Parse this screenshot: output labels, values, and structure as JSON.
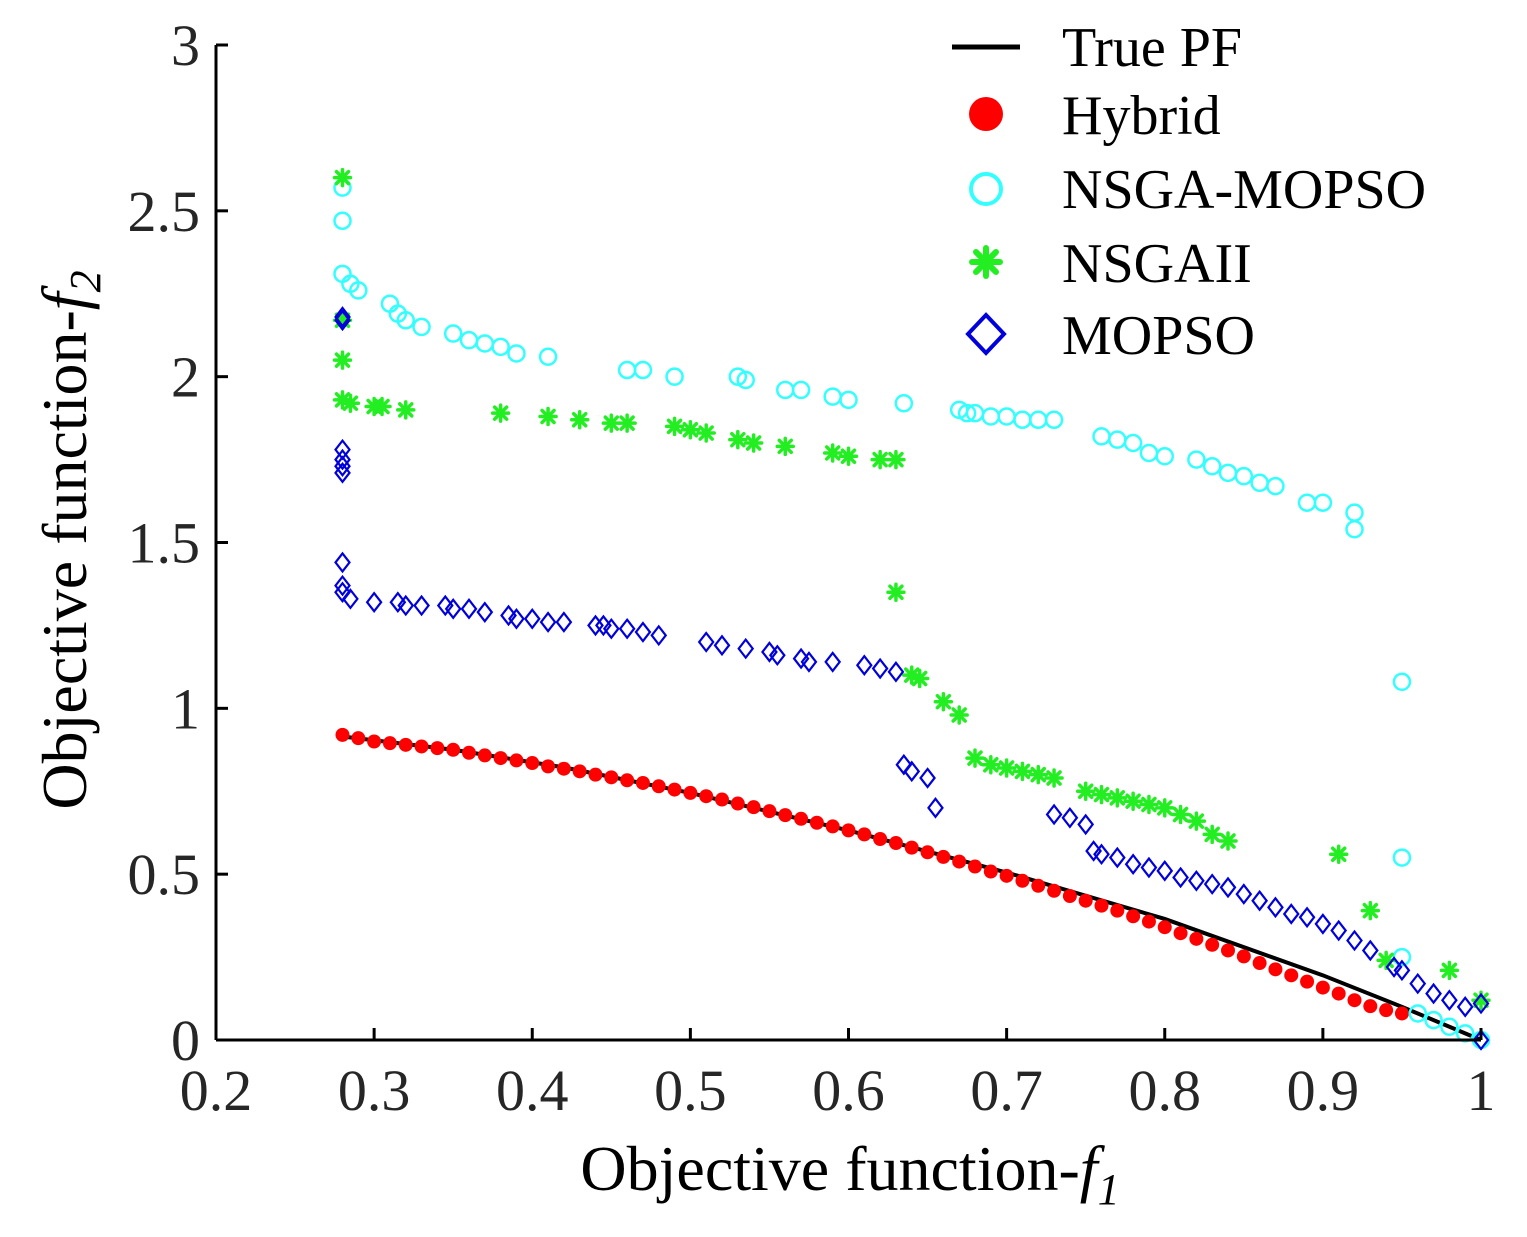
{
  "chart_data": {
    "type": "scatter",
    "title": "",
    "xlabel": "Objective function-",
    "xlabel_var": "f",
    "xlabel_sub": "1",
    "ylabel": "Objective function-",
    "ylabel_var": "f",
    "ylabel_sub": "2",
    "xlim": [
      0.2,
      1.0
    ],
    "ylim": [
      0,
      3
    ],
    "xticks": [
      0.2,
      0.3,
      0.4,
      0.5,
      0.6,
      0.7,
      0.8,
      0.9,
      1.0
    ],
    "xtick_labels": [
      "0.2",
      "0.3",
      "0.4",
      "0.5",
      "0.6",
      "0.7",
      "0.8",
      "0.9",
      "1"
    ],
    "yticks": [
      0,
      0.5,
      1.0,
      1.5,
      2.0,
      2.5,
      3.0
    ],
    "ytick_labels": [
      "0",
      "0.5",
      "1",
      "1.5",
      "2",
      "2.5",
      "3"
    ],
    "grid": false,
    "legend_position": "top-right",
    "series": [
      {
        "name": "True PF",
        "marker": "line",
        "color": "#000000",
        "x": [
          0.28,
          0.35,
          0.42,
          0.5,
          0.6,
          0.7,
          0.8,
          0.9,
          0.95,
          1.0
        ],
        "y": [
          0.915,
          0.875,
          0.822,
          0.745,
          0.632,
          0.505,
          0.365,
          0.195,
          0.1,
          0.0
        ]
      },
      {
        "name": "Hybrid",
        "marker": "filled-circle",
        "color": "#ff0000",
        "x": [
          0.28,
          0.29,
          0.3,
          0.31,
          0.32,
          0.33,
          0.34,
          0.35,
          0.36,
          0.37,
          0.38,
          0.39,
          0.4,
          0.41,
          0.42,
          0.43,
          0.44,
          0.45,
          0.46,
          0.47,
          0.48,
          0.49,
          0.5,
          0.51,
          0.52,
          0.53,
          0.54,
          0.55,
          0.56,
          0.57,
          0.58,
          0.59,
          0.6,
          0.61,
          0.62,
          0.63,
          0.64,
          0.65,
          0.66,
          0.67,
          0.68,
          0.69,
          0.7,
          0.71,
          0.72,
          0.73,
          0.74,
          0.75,
          0.76,
          0.77,
          0.78,
          0.79,
          0.8,
          0.81,
          0.82,
          0.83,
          0.84,
          0.85,
          0.86,
          0.87,
          0.88,
          0.89,
          0.9,
          0.91,
          0.92,
          0.93,
          0.94,
          0.95
        ],
        "y": [
          0.92,
          0.91,
          0.9,
          0.895,
          0.89,
          0.885,
          0.88,
          0.875,
          0.866,
          0.858,
          0.85,
          0.843,
          0.835,
          0.825,
          0.818,
          0.81,
          0.8,
          0.792,
          0.783,
          0.775,
          0.765,
          0.755,
          0.745,
          0.735,
          0.725,
          0.713,
          0.702,
          0.69,
          0.678,
          0.667,
          0.655,
          0.644,
          0.632,
          0.62,
          0.606,
          0.594,
          0.58,
          0.566,
          0.552,
          0.538,
          0.523,
          0.508,
          0.495,
          0.48,
          0.465,
          0.45,
          0.434,
          0.42,
          0.405,
          0.39,
          0.373,
          0.357,
          0.34,
          0.322,
          0.305,
          0.287,
          0.27,
          0.252,
          0.232,
          0.213,
          0.195,
          0.176,
          0.158,
          0.14,
          0.12,
          0.102,
          0.09,
          0.08
        ]
      },
      {
        "name": "NSGA-MOPSO",
        "marker": "open-circle",
        "color": "#33ffff",
        "x": [
          0.28,
          0.28,
          0.28,
          0.285,
          0.29,
          0.31,
          0.315,
          0.32,
          0.33,
          0.35,
          0.36,
          0.37,
          0.38,
          0.39,
          0.41,
          0.46,
          0.47,
          0.49,
          0.53,
          0.535,
          0.56,
          0.57,
          0.59,
          0.6,
          0.635,
          0.67,
          0.675,
          0.68,
          0.69,
          0.7,
          0.71,
          0.72,
          0.73,
          0.76,
          0.77,
          0.78,
          0.79,
          0.8,
          0.82,
          0.83,
          0.84,
          0.85,
          0.86,
          0.87,
          0.89,
          0.9,
          0.92,
          0.92,
          0.95,
          0.95,
          0.95,
          0.96,
          0.97,
          0.98,
          0.99,
          1.0
        ],
        "y": [
          2.57,
          2.47,
          2.31,
          2.28,
          2.26,
          2.22,
          2.19,
          2.17,
          2.15,
          2.13,
          2.11,
          2.1,
          2.09,
          2.07,
          2.06,
          2.02,
          2.02,
          2.0,
          2.0,
          1.99,
          1.96,
          1.96,
          1.94,
          1.93,
          1.92,
          1.9,
          1.89,
          1.89,
          1.88,
          1.88,
          1.87,
          1.87,
          1.87,
          1.82,
          1.81,
          1.8,
          1.77,
          1.76,
          1.75,
          1.73,
          1.71,
          1.7,
          1.68,
          1.67,
          1.62,
          1.62,
          1.59,
          1.54,
          1.08,
          0.55,
          0.25,
          0.08,
          0.06,
          0.04,
          0.02,
          0.0
        ]
      },
      {
        "name": "NSGAII",
        "marker": "asterisk",
        "color": "#22ee22",
        "x": [
          0.28,
          0.28,
          0.28,
          0.28,
          0.285,
          0.3,
          0.305,
          0.32,
          0.38,
          0.41,
          0.43,
          0.45,
          0.46,
          0.49,
          0.5,
          0.51,
          0.53,
          0.54,
          0.56,
          0.59,
          0.6,
          0.62,
          0.63,
          0.63,
          0.64,
          0.645,
          0.66,
          0.67,
          0.68,
          0.69,
          0.7,
          0.71,
          0.72,
          0.73,
          0.75,
          0.76,
          0.77,
          0.78,
          0.79,
          0.8,
          0.81,
          0.82,
          0.83,
          0.84,
          0.91,
          0.93,
          0.94,
          0.98,
          1.0
        ],
        "y": [
          2.6,
          2.17,
          2.05,
          1.93,
          1.92,
          1.91,
          1.91,
          1.9,
          1.89,
          1.88,
          1.87,
          1.86,
          1.86,
          1.85,
          1.84,
          1.83,
          1.81,
          1.8,
          1.79,
          1.77,
          1.76,
          1.75,
          1.75,
          1.35,
          1.1,
          1.09,
          1.02,
          0.98,
          0.85,
          0.83,
          0.82,
          0.81,
          0.8,
          0.79,
          0.75,
          0.74,
          0.73,
          0.72,
          0.71,
          0.7,
          0.68,
          0.66,
          0.62,
          0.6,
          0.56,
          0.39,
          0.24,
          0.21,
          0.12
        ]
      },
      {
        "name": "MOPSO",
        "marker": "open-diamond",
        "color": "#0000dd",
        "x": [
          0.28,
          0.28,
          0.28,
          0.28,
          0.28,
          0.28,
          0.28,
          0.28,
          0.28,
          0.285,
          0.3,
          0.315,
          0.32,
          0.33,
          0.345,
          0.35,
          0.36,
          0.37,
          0.385,
          0.39,
          0.4,
          0.41,
          0.42,
          0.44,
          0.445,
          0.45,
          0.46,
          0.47,
          0.48,
          0.51,
          0.52,
          0.535,
          0.55,
          0.555,
          0.57,
          0.575,
          0.59,
          0.61,
          0.62,
          0.63,
          0.635,
          0.64,
          0.65,
          0.655,
          0.73,
          0.74,
          0.75,
          0.755,
          0.76,
          0.77,
          0.78,
          0.79,
          0.8,
          0.81,
          0.82,
          0.83,
          0.84,
          0.85,
          0.86,
          0.87,
          0.88,
          0.89,
          0.9,
          0.91,
          0.92,
          0.93,
          0.945,
          0.95,
          0.96,
          0.97,
          0.98,
          0.99,
          1.0,
          1.0
        ],
        "y": [
          2.18,
          2.17,
          1.78,
          1.75,
          1.73,
          1.71,
          1.44,
          1.37,
          1.35,
          1.33,
          1.32,
          1.32,
          1.31,
          1.31,
          1.31,
          1.3,
          1.3,
          1.29,
          1.28,
          1.27,
          1.27,
          1.26,
          1.26,
          1.25,
          1.25,
          1.24,
          1.24,
          1.23,
          1.22,
          1.2,
          1.19,
          1.18,
          1.17,
          1.16,
          1.15,
          1.14,
          1.14,
          1.13,
          1.12,
          1.11,
          0.83,
          0.81,
          0.79,
          0.7,
          0.68,
          0.67,
          0.65,
          0.57,
          0.56,
          0.55,
          0.53,
          0.52,
          0.51,
          0.49,
          0.48,
          0.47,
          0.46,
          0.44,
          0.42,
          0.4,
          0.38,
          0.37,
          0.35,
          0.33,
          0.3,
          0.27,
          0.22,
          0.21,
          0.17,
          0.14,
          0.12,
          0.1,
          0.11,
          0.0
        ]
      }
    ]
  }
}
